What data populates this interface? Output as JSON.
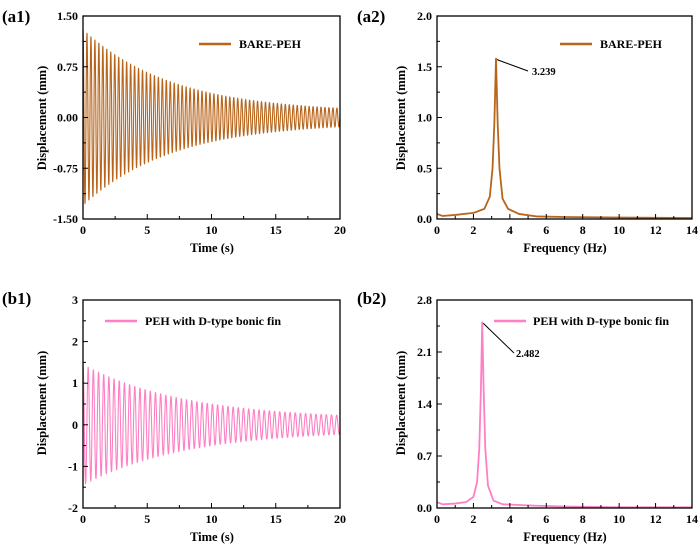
{
  "charts": {
    "a1": {
      "label": "(a1)",
      "xlabel": "Time (s)",
      "ylabel": "Displacement (mm)",
      "legend": "BARE-PEH"
    },
    "a2": {
      "label": "(a2)",
      "xlabel": "Frequency (Hz)",
      "ylabel": "Displacement (mm)",
      "legend": "BARE-PEH",
      "annotation": "3.239"
    },
    "b1": {
      "label": "(b1)",
      "xlabel": "Time (s)",
      "ylabel": "Displacement (mm)",
      "legend": "PEH with D-type bonic fin"
    },
    "b2": {
      "label": "(b2)",
      "xlabel": "Frequency (Hz)",
      "ylabel": "Displacement (mm)",
      "legend": "PEH with D-type bonic fin",
      "annotation": "2.482"
    }
  },
  "chart_data": [
    {
      "id": "a1",
      "type": "line",
      "title": "",
      "xlabel": "Time (s)",
      "ylabel": "Displacement (mm)",
      "xlim": [
        0,
        20
      ],
      "ylim": [
        -1.5,
        1.5
      ],
      "xticks": [
        "0",
        "5",
        "10",
        "15",
        "20"
      ],
      "yticks": [
        "-1.50",
        "-0.75",
        "0.00",
        "0.75",
        "1.50"
      ],
      "color": "#b8651b",
      "series": [
        {
          "name": "BARE-PEH",
          "model": "damped sinusoid",
          "initial_amplitude": 1.3,
          "decay_rate": 0.145,
          "frequency_hz": 3.239,
          "final_amplitude": 0.07
        }
      ],
      "legend_position": "top-right"
    },
    {
      "id": "a2",
      "type": "line",
      "title": "",
      "xlabel": "Frequency (Hz)",
      "ylabel": "Displacement (mm)",
      "xlim": [
        0,
        14
      ],
      "ylim": [
        0,
        2.0
      ],
      "xticks": [
        "0",
        "2",
        "4",
        "6",
        "8",
        "10",
        "12",
        "14"
      ],
      "yticks": [
        "0.0",
        "0.5",
        "1.0",
        "1.5",
        "2.0"
      ],
      "color": "#b8651b",
      "series": [
        {
          "name": "BARE-PEH",
          "x": [
            0,
            0.3,
            1,
            2,
            2.6,
            2.9,
            3.05,
            3.15,
            3.239,
            3.33,
            3.43,
            3.6,
            3.9,
            4.5,
            5.5,
            7,
            10,
            14
          ],
          "y": [
            0.05,
            0.03,
            0.04,
            0.06,
            0.1,
            0.22,
            0.5,
            0.95,
            1.58,
            0.95,
            0.5,
            0.2,
            0.1,
            0.05,
            0.025,
            0.02,
            0.015,
            0.01
          ]
        }
      ],
      "peak": {
        "x": 3.239,
        "y": 1.58,
        "label": "3.239"
      },
      "legend_position": "top-right"
    },
    {
      "id": "b1",
      "type": "line",
      "title": "",
      "xlabel": "Time (s)",
      "ylabel": "Displacement (mm)",
      "xlim": [
        0,
        20
      ],
      "ylim": [
        -2,
        3
      ],
      "xticks": [
        "0",
        "5",
        "10",
        "15",
        "20"
      ],
      "yticks": [
        "-2",
        "-1",
        "0",
        "1",
        "2",
        "3"
      ],
      "color": "#ff7fc4",
      "series": [
        {
          "name": "PEH with D-type bonic fin",
          "model": "damped sinusoid",
          "initial_amplitude": 1.45,
          "decay_rate": 0.125,
          "frequency_hz": 2.482,
          "final_amplitude": 0.12
        }
      ],
      "legend_position": "top-right"
    },
    {
      "id": "b2",
      "type": "line",
      "title": "",
      "xlabel": "Frequency (Hz)",
      "ylabel": "Displacement (mm)",
      "xlim": [
        0,
        14
      ],
      "ylim": [
        0,
        2.8
      ],
      "xticks": [
        "0",
        "2",
        "4",
        "6",
        "8",
        "10",
        "12",
        "14"
      ],
      "yticks": [
        "0.0",
        "0.7",
        "1.4",
        "2.1",
        "2.8"
      ],
      "color": "#ff7fc4",
      "series": [
        {
          "name": "PEH with D-type bonic fin",
          "x": [
            0,
            0.3,
            1,
            1.6,
            2.0,
            2.2,
            2.32,
            2.41,
            2.482,
            2.56,
            2.65,
            2.8,
            3.1,
            3.6,
            4.5,
            5.5,
            7,
            10,
            14
          ],
          "y": [
            0.08,
            0.05,
            0.06,
            0.08,
            0.15,
            0.35,
            0.8,
            1.6,
            2.5,
            1.6,
            0.8,
            0.3,
            0.1,
            0.05,
            0.04,
            0.03,
            0.02,
            0.01,
            0.01
          ]
        }
      ],
      "peak": {
        "x": 2.482,
        "y": 2.5,
        "label": "2.482"
      },
      "legend_position": "top-right"
    }
  ]
}
